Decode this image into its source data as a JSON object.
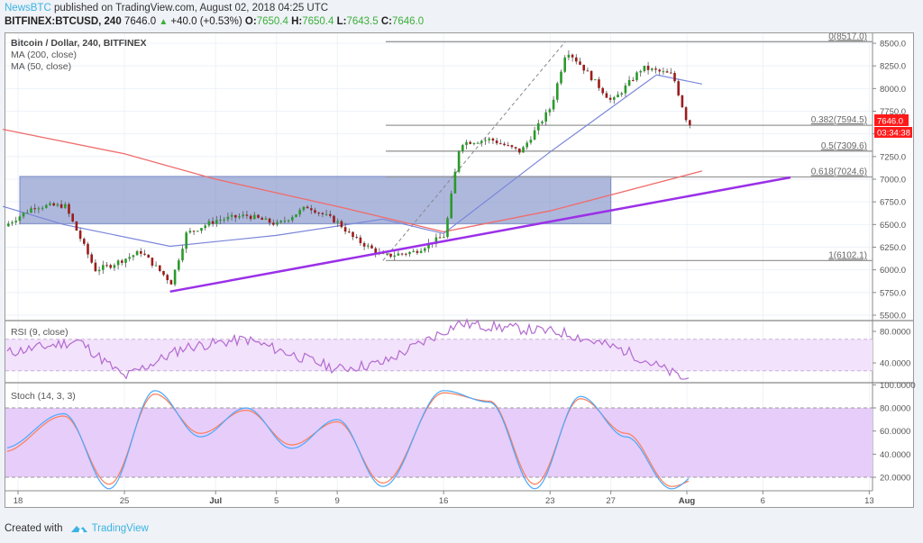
{
  "header": {
    "publisher": "NewsBTC",
    "published_text": " published on TradingView.com, August 02, 2018 04:25 UTC",
    "symbol": "BITFINEX:BTCUSD, 240",
    "last": "7646.0",
    "change_icon": "triangle-up-icon",
    "change": "+40.0 (+0.53%)",
    "o_label": "O:",
    "o": "7650.4",
    "h_label": "H:",
    "h": "7650.4",
    "l_label": "L:",
    "l": "7643.5",
    "c_label": "C:",
    "c": "7646.0"
  },
  "legend": {
    "title": "Bitcoin / Dollar, 240, BITFINEX",
    "ma200": "MA (200, close)",
    "ma50": "MA (50, close)",
    "rsi": "RSI (9, close)",
    "stoch": "Stoch (14, 3, 3)"
  },
  "price_badge": {
    "value": "7646.0",
    "countdown": "03:34:38",
    "color": "#ff1a1a"
  },
  "footer": {
    "created_with": "Created with",
    "brand": "TradingView",
    "brand_icon": "tradingview-logo-icon"
  },
  "colors": {
    "up_candle": "#2a9a2a",
    "down_candle": "#9c1c1c",
    "ma200": "#f06c6c",
    "ma50": "#7a86d8",
    "trendline": "#9b30e8",
    "zone": "#7888c4",
    "rsi_line": "#b36ad0",
    "stoch_k": "#4aa8ff",
    "stoch_d": "#ff7c55"
  },
  "chart_data": [
    {
      "type": "candlestick",
      "title": "Bitcoin / Dollar, 240, BITFINEX",
      "xlabel": "",
      "ylabel": "",
      "x_ticks": [
        "18",
        "25",
        "Jul",
        "5",
        "9",
        "16",
        "23",
        "27",
        "Aug",
        "6",
        "13"
      ],
      "y_ticks": [
        "8500.0",
        "8250.0",
        "8000.0",
        "7750.0",
        "7500.0",
        "7250.0",
        "7000.0",
        "6750.0",
        "6500.0",
        "6250.0",
        "6000.0",
        "5750.0",
        "5500.0"
      ],
      "ylim": [
        5450,
        8600
      ],
      "last_price": 7646.0,
      "fibonacci": [
        {
          "label": "0(8517.0)",
          "level": 0,
          "price": 8517.0
        },
        {
          "label": "0.382(7594.5)",
          "level": 0.382,
          "price": 7594.5
        },
        {
          "label": "0.5(7309.6)",
          "level": 0.5,
          "price": 7309.6
        },
        {
          "label": "0.618(7024.6)",
          "level": 0.618,
          "price": 7024.6
        },
        {
          "label": "1(6102.1)",
          "level": 1,
          "price": 6102.1
        }
      ],
      "zone": {
        "from": "Jun 18",
        "to": "Jul 27",
        "top": 7030,
        "bottom": 6510
      },
      "trendline": {
        "from": {
          "date": "Jun 28",
          "price": 5760
        },
        "to": {
          "date": "Aug 6",
          "price": 7020
        }
      },
      "series": [
        {
          "name": "Close (approx.)",
          "x": [
            "Jun 17",
            "Jun 19",
            "Jun 21",
            "Jun 23",
            "Jun 24",
            "Jun 26",
            "Jun 28",
            "Jun 29",
            "Jul 1",
            "Jul 3",
            "Jul 5",
            "Jul 7",
            "Jul 9",
            "Jul 10",
            "Jul 12",
            "Jul 14",
            "Jul 16",
            "Jul 17",
            "Jul 19",
            "Jul 21",
            "Jul 23",
            "Jul 24",
            "Jul 25",
            "Jul 27",
            "Jul 29",
            "Jul 31",
            "Aug 1",
            "Aug 2"
          ],
          "values": [
            6480,
            6700,
            6710,
            6000,
            6050,
            6200,
            5860,
            6400,
            6550,
            6600,
            6500,
            6700,
            6520,
            6350,
            6150,
            6200,
            6380,
            7400,
            7440,
            7300,
            7800,
            8430,
            8250,
            7850,
            8230,
            8150,
            7600,
            7646
          ]
        },
        {
          "name": "MA (200, close)",
          "x": [
            "Jun 17",
            "Jun 25",
            "Jul 1",
            "Jul 9",
            "Jul 16",
            "Jul 23",
            "Aug 2"
          ],
          "values": [
            7550,
            7280,
            7000,
            6700,
            6420,
            6650,
            7090
          ]
        },
        {
          "name": "MA (50, close)",
          "x": [
            "Jun 17",
            "Jun 21",
            "Jun 28",
            "Jul 5",
            "Jul 12",
            "Jul 16",
            "Jul 23",
            "Jul 30",
            "Aug 2"
          ],
          "values": [
            6700,
            6500,
            6260,
            6380,
            6560,
            6400,
            7300,
            8150,
            8050
          ]
        }
      ]
    },
    {
      "type": "line",
      "title": "RSI (9, close)",
      "y_ticks": [
        "80.0000",
        "40.0000"
      ],
      "bands": [
        70,
        30
      ],
      "ylim": [
        0,
        100
      ],
      "series": [
        {
          "name": "RSI",
          "x": [
            "Jun 17",
            "Jun 22",
            "Jun 25",
            "Jun 29",
            "Jul 3",
            "Jul 9",
            "Jul 12",
            "Jul 17",
            "Jul 24",
            "Jul 28",
            "Aug 1",
            "Aug 2"
          ],
          "values": [
            52,
            68,
            22,
            60,
            70,
            32,
            40,
            90,
            78,
            55,
            18,
            35
          ]
        }
      ]
    },
    {
      "type": "line",
      "title": "Stoch (14, 3, 3)",
      "y_ticks": [
        "100.0000",
        "80.0000",
        "60.0000",
        "40.0000",
        "20.0000"
      ],
      "bands": [
        80,
        20
      ],
      "ylim": [
        0,
        100
      ],
      "series": [
        {
          "name": "%K",
          "x": [
            "Jun 17",
            "Jun 21",
            "Jun 24",
            "Jun 27",
            "Jun 30",
            "Jul 3",
            "Jul 6",
            "Jul 9",
            "Jul 12",
            "Jul 16",
            "Jul 19",
            "Jul 22",
            "Jul 25",
            "Jul 28",
            "Jul 31",
            "Aug 2"
          ],
          "values": [
            45,
            75,
            10,
            95,
            55,
            80,
            45,
            70,
            12,
            95,
            85,
            10,
            90,
            55,
            10,
            25
          ]
        },
        {
          "name": "%D",
          "x": [
            "Jun 17",
            "Jun 21",
            "Jun 24",
            "Jun 27",
            "Jun 30",
            "Jul 3",
            "Jul 6",
            "Jul 9",
            "Jul 12",
            "Jul 16",
            "Jul 19",
            "Jul 22",
            "Jul 25",
            "Jul 28",
            "Jul 31",
            "Aug 2"
          ],
          "values": [
            42,
            73,
            14,
            92,
            58,
            78,
            48,
            68,
            15,
            93,
            86,
            14,
            88,
            58,
            12,
            20
          ]
        }
      ]
    }
  ]
}
